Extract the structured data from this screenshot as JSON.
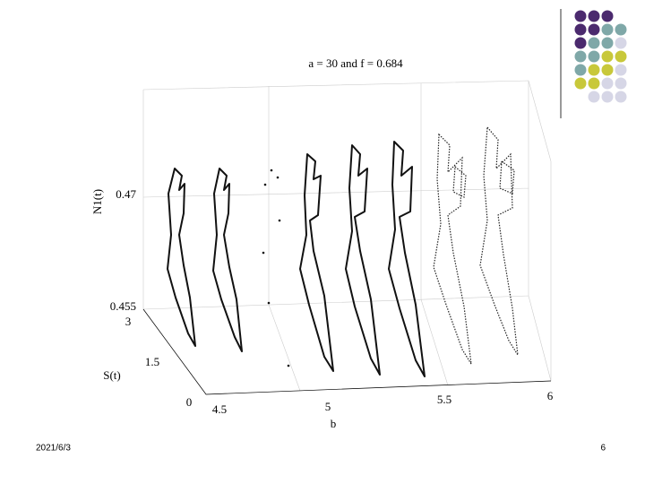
{
  "plot": {
    "title": "a = 30 and f = 0.684",
    "z_label": "N1(t)",
    "y_label": "S(t)",
    "x_label": "b",
    "z_ticks": [
      "0.47",
      "0.455"
    ],
    "y_ticks": [
      "3",
      "1.5",
      "0"
    ],
    "x_ticks": [
      "4.5",
      "5",
      "5.5",
      "6"
    ]
  },
  "footer": {
    "date": "2021/6/3",
    "page": "6"
  }
}
